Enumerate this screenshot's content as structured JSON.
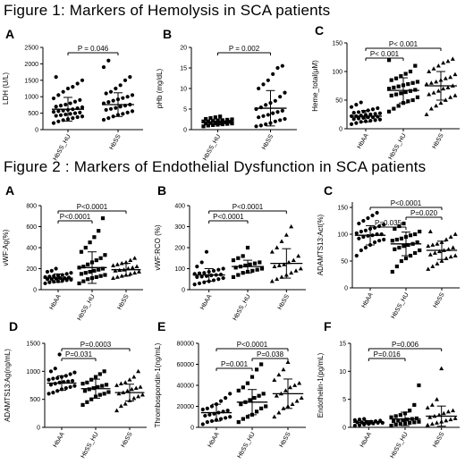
{
  "figure1": {
    "title": "Figure 1: Markers of Hemolysis in SCA patients"
  },
  "figure2": {
    "title": "Figure 2 : Markers of Endothelial Dysfunction  in SCA patients"
  },
  "chart_data": [
    {
      "id": "f1a",
      "type": "scatter",
      "panel": "A",
      "ylabel": "LDH (U/L)",
      "ylim": [
        0,
        2500
      ],
      "yticks": [
        0,
        500,
        1000,
        1500,
        2000,
        2500
      ],
      "categories": [
        "HbSS_HU",
        "HbSS"
      ],
      "groups": [
        {
          "marker": "circle",
          "mean": 620,
          "sd": 360,
          "values": [
            200,
            250,
            290,
            320,
            350,
            380,
            400,
            420,
            440,
            460,
            480,
            500,
            520,
            540,
            560,
            580,
            600,
            620,
            650,
            680,
            700,
            730,
            760,
            800,
            850,
            900,
            950,
            1050,
            1150,
            1250,
            1300,
            1400,
            1500,
            1600
          ]
        },
        {
          "marker": "circle",
          "mean": 760,
          "sd": 360,
          "values": [
            300,
            350,
            400,
            450,
            480,
            520,
            560,
            600,
            630,
            660,
            700,
            730,
            760,
            800,
            840,
            880,
            920,
            960,
            1000,
            1050,
            1100,
            1150,
            1250,
            1350,
            1500,
            1600,
            1900,
            2100
          ]
        }
      ],
      "comparisons": [
        {
          "from": 0,
          "to": 1,
          "label": "P = 0.046"
        }
      ]
    },
    {
      "id": "f1b",
      "type": "scatter",
      "panel": "B",
      "ylabel": "pHb (mg/dL)",
      "ylim": [
        0,
        20
      ],
      "yticks": [
        0,
        5,
        10,
        15,
        20
      ],
      "categories": [
        "HbSS_HU",
        "HbSS"
      ],
      "groups": [
        {
          "marker": "square",
          "mean": 1.9,
          "sd": 0.7,
          "values": [
            0.8,
            1.0,
            1.1,
            1.2,
            1.3,
            1.4,
            1.5,
            1.5,
            1.6,
            1.7,
            1.8,
            1.8,
            1.9,
            2.0,
            2.0,
            2.1,
            2.2,
            2.3,
            2.4,
            2.5,
            2.6,
            2.8,
            3.0,
            3.2
          ]
        },
        {
          "marker": "circle",
          "mean": 5.2,
          "sd": 4.3,
          "values": [
            0.8,
            1.0,
            1.3,
            1.6,
            2.0,
            2.3,
            2.6,
            3.0,
            3.3,
            3.6,
            4.0,
            4.3,
            4.6,
            5.0,
            5.4,
            6.0,
            6.5,
            7.0,
            8.0,
            9.0,
            10.0,
            11.0,
            12.0,
            13.5,
            15.0,
            15.5
          ]
        }
      ],
      "comparisons": [
        {
          "from": 0,
          "to": 1,
          "label": "P = 0.002"
        }
      ]
    },
    {
      "id": "f1c",
      "type": "scatter",
      "panel": "C",
      "ylabel": "Heme_total(μM)",
      "ylim": [
        0,
        150
      ],
      "yticks": [
        0,
        50,
        100,
        150
      ],
      "categories": [
        "HbAA",
        "HbSS_HU",
        "HbSS"
      ],
      "groups": [
        {
          "marker": "circle",
          "mean": 22,
          "sd": 10,
          "values": [
            8,
            10,
            12,
            13,
            14,
            15,
            16,
            17,
            18,
            19,
            20,
            20,
            21,
            22,
            22,
            23,
            24,
            25,
            26,
            27,
            28,
            29,
            30,
            32,
            34,
            36,
            38,
            42,
            46
          ]
        },
        {
          "marker": "square",
          "mean": 67,
          "sd": 22,
          "values": [
            30,
            35,
            40,
            45,
            48,
            50,
            55,
            58,
            60,
            62,
            64,
            66,
            68,
            70,
            72,
            74,
            76,
            78,
            80,
            82,
            85,
            88,
            92,
            96,
            100,
            110,
            120
          ]
        },
        {
          "marker": "triangle",
          "mean": 75,
          "sd": 25,
          "values": [
            25,
            35,
            40,
            45,
            50,
            55,
            58,
            60,
            63,
            66,
            70,
            72,
            75,
            78,
            80,
            82,
            85,
            88,
            90,
            95,
            100,
            105,
            110,
            115,
            118,
            122
          ]
        }
      ],
      "comparisons": [
        {
          "from": 0,
          "to": 1,
          "label": "P< 0.001"
        },
        {
          "from": 0,
          "to": 2,
          "label": "P< 0.001"
        }
      ]
    },
    {
      "id": "f2a",
      "type": "scatter",
      "panel": "A",
      "ylabel": "vWF:Ag(%)",
      "ylim": [
        0,
        800
      ],
      "yticks": [
        0,
        200,
        400,
        600,
        800
      ],
      "categories": [
        "HbAA",
        "HbSS_HU",
        "HbSS"
      ],
      "groups": [
        {
          "marker": "circle",
          "mean": 110,
          "sd": 40,
          "values": [
            60,
            70,
            75,
            80,
            85,
            90,
            95,
            100,
            100,
            105,
            110,
            110,
            115,
            120,
            125,
            130,
            135,
            140,
            150,
            160,
            170,
            180,
            200
          ]
        },
        {
          "marker": "square",
          "mean": 210,
          "sd": 150,
          "values": [
            60,
            80,
            100,
            110,
            120,
            130,
            140,
            150,
            160,
            170,
            180,
            190,
            200,
            210,
            220,
            240,
            260,
            280,
            300,
            330,
            360,
            400,
            450,
            500,
            560,
            680
          ]
        },
        {
          "marker": "triangle",
          "mean": 190,
          "sd": 60,
          "values": [
            110,
            120,
            130,
            140,
            150,
            160,
            170,
            180,
            185,
            190,
            200,
            210,
            220,
            230,
            240,
            250,
            260,
            280,
            300
          ]
        }
      ],
      "comparisons": [
        {
          "from": 0,
          "to": 1,
          "label": "P<0.0001"
        },
        {
          "from": 0,
          "to": 2,
          "label": "P<0.0001"
        }
      ]
    },
    {
      "id": "f2b",
      "type": "scatter",
      "panel": "B",
      "ylabel": "vWF:RCO (%)",
      "ylim": [
        0,
        400
      ],
      "yticks": [
        0,
        100,
        200,
        300,
        400
      ],
      "categories": [
        "HbAA",
        "HbSS_HU",
        "HbSS"
      ],
      "groups": [
        {
          "marker": "circle",
          "mean": 70,
          "sd": 30,
          "values": [
            25,
            30,
            35,
            40,
            45,
            50,
            55,
            60,
            62,
            65,
            68,
            70,
            72,
            75,
            78,
            80,
            85,
            90,
            95,
            100,
            110,
            130,
            180
          ]
        },
        {
          "marker": "square",
          "mean": 110,
          "sd": 30,
          "values": [
            60,
            70,
            80,
            85,
            90,
            95,
            100,
            105,
            110,
            115,
            120,
            125,
            130,
            140,
            150,
            160,
            200
          ]
        },
        {
          "marker": "triangle",
          "mean": 125,
          "sd": 70,
          "values": [
            40,
            50,
            60,
            70,
            80,
            90,
            100,
            110,
            115,
            120,
            130,
            140,
            160,
            180,
            200,
            230,
            260,
            300
          ]
        }
      ],
      "comparisons": [
        {
          "from": 0,
          "to": 1,
          "label": "P<0.0001"
        },
        {
          "from": 0,
          "to": 2,
          "label": "P<0.0001"
        }
      ]
    },
    {
      "id": "f2c",
      "type": "scatter",
      "panel": "C",
      "ylabel": "ADAMTS13:Act(%)",
      "ylim": [
        0,
        160
      ],
      "yticks": [
        0,
        50,
        100,
        150
      ],
      "categories": [
        "HbAA",
        "HbSS_HU",
        "HbSS"
      ],
      "groups": [
        {
          "marker": "circle",
          "mean": 98,
          "sd": 18,
          "values": [
            60,
            70,
            75,
            80,
            85,
            88,
            90,
            92,
            95,
            97,
            98,
            100,
            100,
            102,
            105,
            107,
            110,
            112,
            115,
            118,
            120,
            125,
            130,
            135,
            140
          ]
        },
        {
          "marker": "square",
          "mean": 82,
          "sd": 22,
          "values": [
            30,
            40,
            50,
            55,
            60,
            65,
            70,
            72,
            75,
            78,
            80,
            82,
            85,
            88,
            90,
            92,
            95,
            98,
            100,
            105,
            110,
            115,
            120
          ]
        },
        {
          "marker": "triangle",
          "mean": 70,
          "sd": 17,
          "values": [
            35,
            40,
            45,
            50,
            55,
            58,
            60,
            62,
            65,
            68,
            70,
            72,
            75,
            78,
            80,
            82,
            85,
            90,
            95,
            100,
            105
          ]
        }
      ],
      "comparisons": [
        {
          "from": 0,
          "to": 1,
          "label": "P=0.035"
        },
        {
          "from": 1,
          "to": 2,
          "label": "P=0.020"
        },
        {
          "from": 0,
          "to": 2,
          "label": "P<0.0001"
        }
      ]
    },
    {
      "id": "f2d",
      "type": "scatter",
      "panel": "D",
      "ylabel": "ADAMTS13:Ag(ng/mL)",
      "ylim": [
        0,
        1500
      ],
      "yticks": [
        0,
        500,
        1000,
        1500
      ],
      "categories": [
        "HbAA",
        "HbSS_HU",
        "HbSS"
      ],
      "groups": [
        {
          "marker": "circle",
          "mean": 790,
          "sd": 130,
          "values": [
            600,
            620,
            650,
            680,
            700,
            720,
            740,
            760,
            780,
            800,
            810,
            820,
            830,
            850,
            870,
            880,
            900,
            920,
            950,
            980,
            1000,
            1050,
            1300
          ]
        },
        {
          "marker": "square",
          "mean": 690,
          "sd": 170,
          "values": [
            400,
            450,
            500,
            550,
            580,
            600,
            630,
            650,
            680,
            700,
            720,
            740,
            760,
            780,
            800,
            850,
            900,
            950,
            1000
          ]
        },
        {
          "marker": "triangle",
          "mean": 620,
          "sd": 150,
          "values": [
            300,
            380,
            420,
            480,
            520,
            550,
            580,
            600,
            620,
            650,
            680,
            700,
            720,
            750,
            780,
            800,
            850,
            900,
            1000
          ]
        }
      ],
      "comparisons": [
        {
          "from": 0,
          "to": 1,
          "label": "P=0.031"
        },
        {
          "from": 0,
          "to": 2,
          "label": "P=0.0003"
        }
      ]
    },
    {
      "id": "f2e",
      "type": "scatter",
      "panel": "E",
      "ylabel": "Thrombospondin-1(ng/mL)",
      "ylim": [
        0,
        80000
      ],
      "yticks": [
        0,
        20000,
        40000,
        60000,
        80000
      ],
      "categories": [
        "HbAA",
        "HbSS_HU",
        "HbSS"
      ],
      "groups": [
        {
          "marker": "circle",
          "mean": 14000,
          "sd": 8000,
          "values": [
            3000,
            5000,
            6000,
            7000,
            8000,
            9000,
            10000,
            11000,
            12000,
            13000,
            14000,
            15000,
            16000,
            17000,
            18000,
            20000,
            22000,
            25000,
            28000,
            32000
          ]
        },
        {
          "marker": "square",
          "mean": 24000,
          "sd": 12000,
          "values": [
            5000,
            8000,
            10000,
            12000,
            15000,
            18000,
            20000,
            22000,
            24000,
            26000,
            28000,
            30000,
            32000,
            35000,
            38000,
            42000,
            48000,
            55000,
            60000
          ]
        },
        {
          "marker": "triangle",
          "mean": 32000,
          "sd": 14000,
          "values": [
            10000,
            14000,
            18000,
            20000,
            22000,
            25000,
            28000,
            30000,
            32000,
            35000,
            38000,
            40000,
            42000,
            45000,
            50000,
            55000,
            62000
          ]
        }
      ],
      "comparisons": [
        {
          "from": 0,
          "to": 1,
          "label": "P=0.001"
        },
        {
          "from": 1,
          "to": 2,
          "label": "P=0.038"
        },
        {
          "from": 0,
          "to": 2,
          "label": "P<0.0001"
        }
      ]
    },
    {
      "id": "f2f",
      "type": "scatter",
      "panel": "F",
      "ylabel": "Endothelin-1(pg/mL)",
      "ylim": [
        0,
        15
      ],
      "yticks": [
        0,
        5,
        10,
        15
      ],
      "categories": [
        "HbAA",
        "HbSS_HU",
        "HbSS"
      ],
      "groups": [
        {
          "marker": "circle",
          "mean": 0.9,
          "sd": 0.3,
          "values": [
            0.3,
            0.4,
            0.5,
            0.6,
            0.7,
            0.8,
            0.8,
            0.9,
            0.9,
            1.0,
            1.0,
            1.1,
            1.2,
            1.3,
            1.4,
            1.5
          ]
        },
        {
          "marker": "square",
          "mean": 1.5,
          "sd": 1.2,
          "values": [
            0.3,
            0.5,
            0.6,
            0.7,
            0.8,
            0.9,
            1.0,
            1.1,
            1.2,
            1.3,
            1.4,
            1.5,
            1.6,
            1.8,
            2.0,
            2.2,
            2.5,
            3.0,
            4.0,
            7.5
          ]
        },
        {
          "marker": "triangle",
          "mean": 2.0,
          "sd": 1.8,
          "values": [
            0.4,
            0.6,
            0.8,
            1.0,
            1.2,
            1.4,
            1.6,
            1.8,
            2.0,
            2.2,
            2.5,
            2.8,
            3.0,
            3.5,
            4.0,
            5.0,
            10.5
          ]
        }
      ],
      "comparisons": [
        {
          "from": 0,
          "to": 1,
          "label": "P=0.016"
        },
        {
          "from": 0,
          "to": 2,
          "label": "P=0.006"
        }
      ]
    }
  ]
}
